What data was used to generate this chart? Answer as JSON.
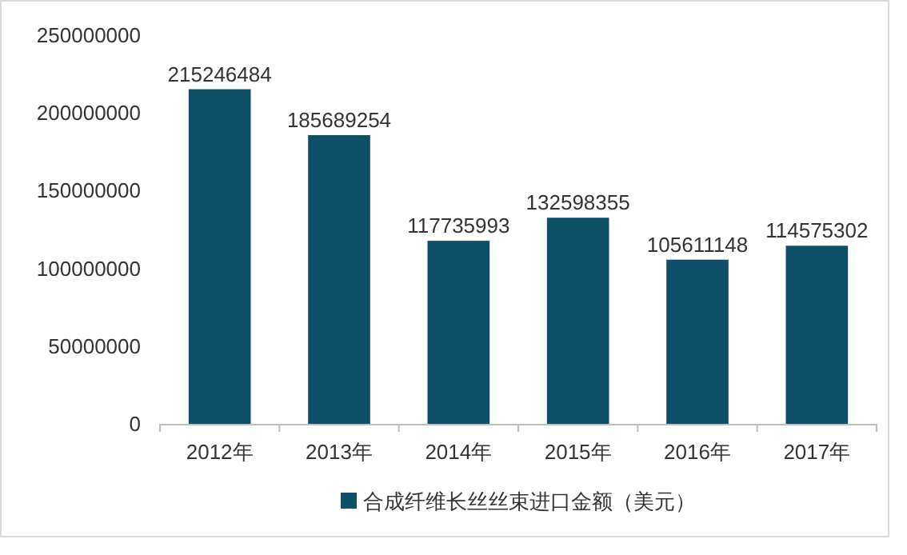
{
  "chart_data": {
    "type": "bar",
    "categories": [
      "2012年",
      "2013年",
      "2014年",
      "2015年",
      "2016年",
      "2017年"
    ],
    "series": [
      {
        "name": "合成纤维长丝丝束进口金额（美元）",
        "color": "#0d5068",
        "values": [
          215246484,
          185689254,
          117735993,
          132598355,
          105611148,
          114575302
        ]
      }
    ],
    "ylim": [
      0,
      250000000
    ],
    "yticks": [
      0,
      50000000,
      100000000,
      150000000,
      200000000,
      250000000
    ],
    "data_labels": true,
    "legend": "bottom",
    "grid": false
  }
}
